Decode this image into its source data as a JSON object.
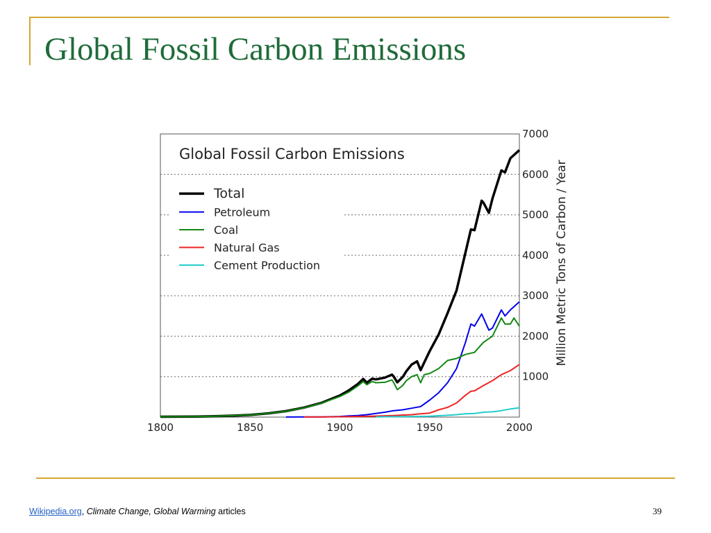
{
  "slide": {
    "title": "Global Fossil Carbon Emissions",
    "page_number": "39",
    "accent_color": "#d4a631",
    "title_color": "#1f6b3a"
  },
  "footer": {
    "link_text": "Wikipedia.org",
    "separator": ",",
    "italic_text": "Climate Change, Global Warming",
    "suffix": "articles"
  },
  "chart_data": {
    "type": "line",
    "title": "Global Fossil Carbon Emissions",
    "xlabel": "",
    "ylabel": "Million Metric Tons of Carbon / Year",
    "xlim": [
      1800,
      2000
    ],
    "ylim": [
      0,
      7000
    ],
    "x_ticks": [
      1800,
      1850,
      1900,
      1950,
      2000
    ],
    "y_ticks": [
      1000,
      2000,
      3000,
      4000,
      5000,
      6000,
      7000
    ],
    "y_axis_side": "right",
    "grid": "horizontal dotted",
    "legend_position": "top-left",
    "series": [
      {
        "name": "Total",
        "color": "#000000",
        "x": [
          1800,
          1810,
          1820,
          1830,
          1840,
          1850,
          1860,
          1870,
          1880,
          1890,
          1900,
          1905,
          1910,
          1913,
          1915,
          1918,
          1920,
          1925,
          1929,
          1930,
          1932,
          1935,
          1937,
          1940,
          1943,
          1945,
          1947,
          1950,
          1955,
          1960,
          1965,
          1970,
          1973,
          1975,
          1979,
          1980,
          1983,
          1985,
          1990,
          1992,
          1995,
          2000
        ],
        "values": [
          8,
          10,
          14,
          22,
          35,
          54,
          93,
          147,
          235,
          356,
          534,
          660,
          819,
          943,
          850,
          950,
          932,
          975,
          1050,
          1000,
          860,
          990,
          1130,
          1300,
          1380,
          1160,
          1350,
          1630,
          2040,
          2570,
          3130,
          4070,
          4640,
          4620,
          5350,
          5300,
          5050,
          5400,
          6100,
          6050,
          6400,
          6600
        ]
      },
      {
        "name": "Petroleum",
        "color": "#0000ee",
        "x": [
          1870,
          1880,
          1890,
          1900,
          1905,
          1910,
          1915,
          1920,
          1925,
          1930,
          1935,
          1940,
          1945,
          1950,
          1955,
          1960,
          1965,
          1970,
          1973,
          1975,
          1979,
          1980,
          1983,
          1985,
          1990,
          1992,
          1995,
          2000
        ],
        "values": [
          2,
          3,
          5,
          15,
          30,
          40,
          60,
          90,
          120,
          160,
          180,
          220,
          260,
          420,
          600,
          850,
          1200,
          1850,
          2300,
          2250,
          2550,
          2450,
          2150,
          2200,
          2650,
          2500,
          2650,
          2850
        ]
      },
      {
        "name": "Coal",
        "color": "#118811",
        "x": [
          1800,
          1810,
          1820,
          1830,
          1840,
          1850,
          1860,
          1870,
          1880,
          1890,
          1900,
          1905,
          1910,
          1913,
          1915,
          1918,
          1920,
          1925,
          1929,
          1930,
          1932,
          1935,
          1937,
          1940,
          1943,
          1945,
          1947,
          1950,
          1955,
          1960,
          1965,
          1970,
          1975,
          1980,
          1985,
          1990,
          1992,
          1995,
          1997,
          2000
        ],
        "values": [
          8,
          10,
          14,
          22,
          35,
          54,
          93,
          145,
          230,
          350,
          510,
          620,
          770,
          880,
          800,
          880,
          850,
          860,
          920,
          850,
          680,
          780,
          900,
          1000,
          1050,
          850,
          1050,
          1080,
          1200,
          1400,
          1450,
          1550,
          1600,
          1850,
          2000,
          2450,
          2300,
          2300,
          2450,
          2250
        ]
      },
      {
        "name": "Natural Gas",
        "color": "#ee2222",
        "x": [
          1880,
          1890,
          1900,
          1910,
          1920,
          1930,
          1935,
          1940,
          1945,
          1950,
          1955,
          1960,
          1965,
          1970,
          1973,
          1975,
          1980,
          1985,
          1990,
          1995,
          2000
        ],
        "values": [
          2,
          5,
          8,
          15,
          25,
          40,
          50,
          60,
          80,
          100,
          180,
          240,
          350,
          540,
          640,
          650,
          780,
          900,
          1050,
          1150,
          1300
        ]
      },
      {
        "name": "Cement Production",
        "color": "#22cccc",
        "x": [
          1920,
          1930,
          1940,
          1950,
          1955,
          1960,
          1965,
          1970,
          1975,
          1980,
          1985,
          1990,
          1995,
          2000
        ],
        "values": [
          5,
          10,
          15,
          20,
          35,
          45,
          60,
          80,
          90,
          120,
          130,
          160,
          200,
          230
        ]
      }
    ]
  }
}
